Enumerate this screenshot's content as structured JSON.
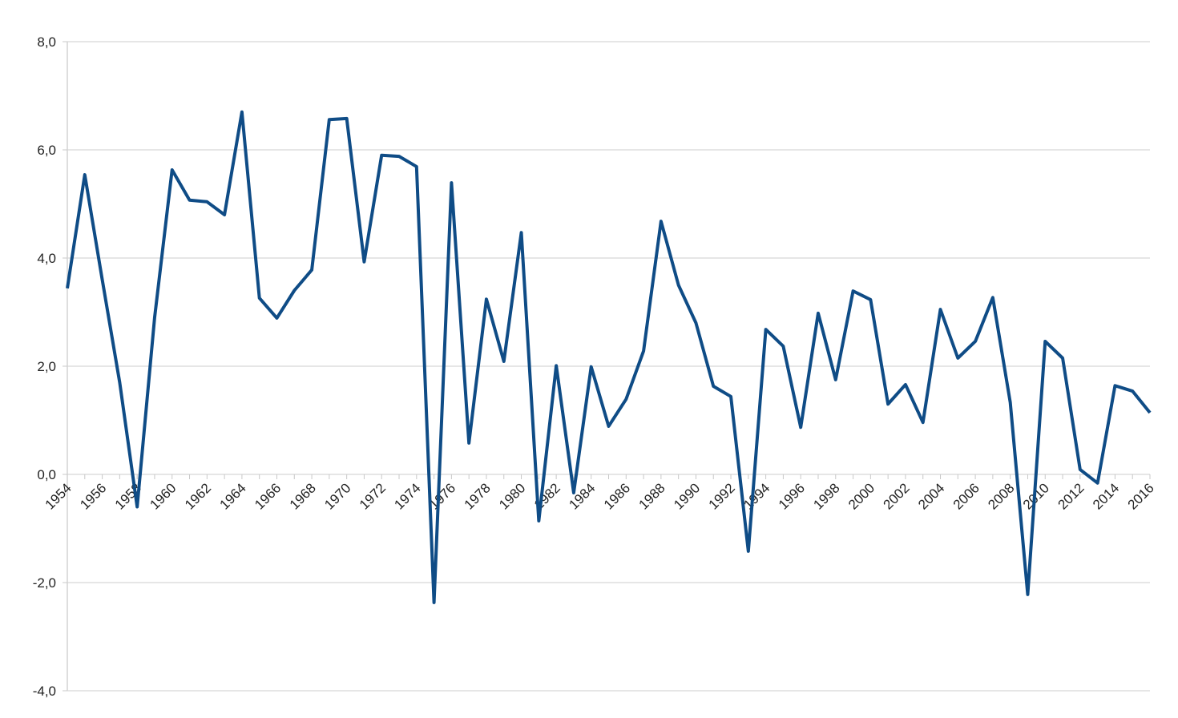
{
  "chart_data": {
    "type": "line",
    "categories": [
      "1954",
      null,
      "1956",
      null,
      "1958",
      null,
      "1960",
      null,
      "1962",
      null,
      "1964",
      null,
      "1966",
      null,
      "1968",
      null,
      "1970",
      null,
      "1972",
      null,
      "1974",
      null,
      "1976",
      null,
      "1978",
      null,
      "1980",
      null,
      "1982",
      null,
      "1984",
      null,
      "1986",
      null,
      "1988",
      null,
      "1990",
      null,
      "1992",
      null,
      "1994",
      null,
      "1996",
      null,
      "1998",
      null,
      "2000",
      null,
      "2002",
      null,
      "2004",
      null,
      "2006",
      null,
      "2008",
      null,
      "2010",
      null,
      "2012",
      null,
      "2014",
      null,
      "2016"
    ],
    "series": [
      {
        "color": "#0f4c86",
        "values": [
          3.44,
          5.54,
          3.6,
          1.7,
          -0.6,
          2.9,
          5.63,
          5.07,
          5.04,
          4.8,
          6.7,
          3.26,
          2.89,
          3.4,
          3.78,
          6.56,
          6.58,
          3.93,
          5.9,
          5.88,
          5.69,
          -2.37,
          5.39,
          0.58,
          3.24,
          2.09,
          4.47,
          -0.86,
          2.01,
          -0.34,
          1.99,
          0.89,
          1.39,
          2.28,
          4.68,
          3.5,
          2.8,
          1.63,
          1.44,
          -1.42,
          2.68,
          2.37,
          0.87,
          2.98,
          1.75,
          3.39,
          3.23,
          1.3,
          1.66,
          0.96,
          3.05,
          2.15,
          2.46,
          3.27,
          1.33,
          -2.22,
          2.46,
          2.15,
          0.09,
          -0.16,
          1.64,
          1.54,
          1.14
        ]
      }
    ],
    "ylim": [
      -4,
      8
    ],
    "yticks": [
      {
        "value": -4,
        "label": "-4,0"
      },
      {
        "value": -2,
        "label": "-2,0"
      },
      {
        "value": 0,
        "label": "0,0"
      },
      {
        "value": 2,
        "label": "2,0"
      },
      {
        "value": 4,
        "label": "4,0"
      },
      {
        "value": 6,
        "label": "6,0"
      },
      {
        "value": 8,
        "label": "8,0"
      }
    ],
    "grid": true
  }
}
